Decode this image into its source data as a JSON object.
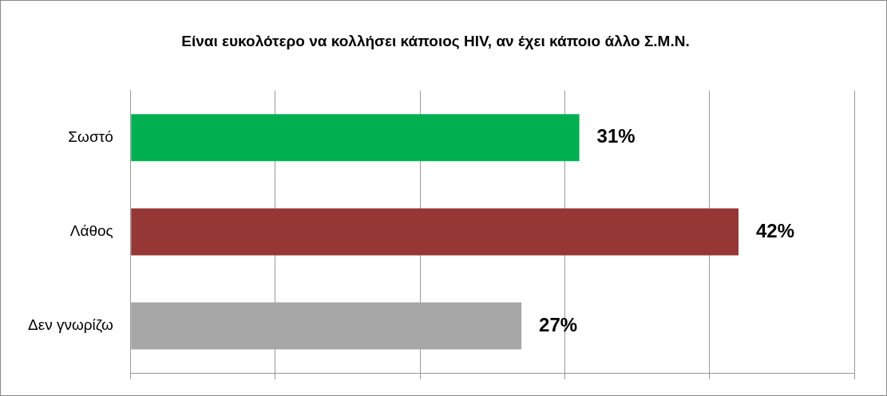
{
  "chart_data": {
    "type": "bar",
    "orientation": "horizontal",
    "title": "Είναι ευκολότερο να κολλήσει κάποιος HIV, αν έχει κάποιο άλλο Σ.Μ.Ν.",
    "categories": [
      "Σωστό",
      "Λάθος",
      "Δεν γνωρίζω"
    ],
    "values": [
      31,
      42,
      27
    ],
    "colors": [
      "#00b050",
      "#953735",
      "#a6a6a6"
    ],
    "value_labels": [
      "31%",
      "42%",
      "27%"
    ],
    "xlim": [
      0,
      50
    ],
    "xticks": [
      {
        "value": 0,
        "label": null
      },
      {
        "value": 10,
        "label": null
      },
      {
        "value": 20,
        "label": null
      },
      {
        "value": 30,
        "label": null
      },
      {
        "value": 40,
        "label": null
      },
      {
        "value": 50,
        "label": null
      }
    ],
    "tick_labels": "y",
    "grid": "x",
    "legend": false
  }
}
